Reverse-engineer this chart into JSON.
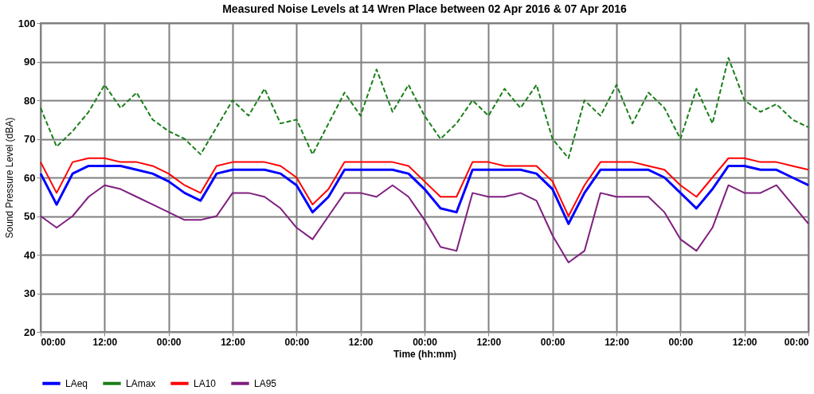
{
  "chart_data": {
    "type": "line",
    "title": "Measured Noise Levels at 14 Wren Place between 02 Apr 2016 & 07 Apr 2016",
    "xlabel": "Time (hh:mm)",
    "ylabel": "Sound Pressure Level (dBA)",
    "x": [
      "2016-04-02T00:00",
      "2016-04-02T03:00",
      "2016-04-02T06:00",
      "2016-04-02T09:00",
      "2016-04-02T12:00",
      "2016-04-02T15:00",
      "2016-04-02T18:00",
      "2016-04-02T21:00",
      "2016-04-03T00:00",
      "2016-04-03T03:00",
      "2016-04-03T06:00",
      "2016-04-03T09:00",
      "2016-04-03T12:00",
      "2016-04-03T15:00",
      "2016-04-03T18:00",
      "2016-04-03T21:00",
      "2016-04-04T00:00",
      "2016-04-04T03:00",
      "2016-04-04T06:00",
      "2016-04-04T09:00",
      "2016-04-04T12:00",
      "2016-04-04T15:00",
      "2016-04-04T18:00",
      "2016-04-04T21:00",
      "2016-04-05T00:00",
      "2016-04-05T03:00",
      "2016-04-05T06:00",
      "2016-04-05T09:00",
      "2016-04-05T12:00",
      "2016-04-05T15:00",
      "2016-04-05T18:00",
      "2016-04-05T21:00",
      "2016-04-06T00:00",
      "2016-04-06T03:00",
      "2016-04-06T06:00",
      "2016-04-06T09:00",
      "2016-04-06T12:00",
      "2016-04-06T15:00",
      "2016-04-06T18:00",
      "2016-04-06T21:00",
      "2016-04-07T00:00",
      "2016-04-07T03:00",
      "2016-04-07T06:00",
      "2016-04-07T09:00",
      "2016-04-07T12:00",
      "2016-04-07T15:00",
      "2016-04-07T18:00",
      "2016-04-07T21:00",
      "2016-04-08T00:00"
    ],
    "series": [
      {
        "name": "LAeq",
        "color": "#0000ff",
        "line_style": "solid",
        "values": [
          61,
          53,
          61,
          63,
          63,
          63,
          62,
          61,
          59,
          56,
          54,
          61,
          62,
          62,
          62,
          61,
          58,
          51,
          55,
          62,
          62,
          62,
          62,
          61,
          57,
          52,
          51,
          62,
          62,
          62,
          62,
          61,
          57,
          48,
          56,
          62,
          62,
          62,
          62,
          60,
          56,
          52,
          57,
          63,
          63,
          62,
          62,
          60,
          58
        ]
      },
      {
        "name": "LAmax",
        "color": "#1a7f1a",
        "line_style": "dashed",
        "values": [
          78,
          68,
          72,
          77,
          84,
          78,
          82,
          75,
          72,
          70,
          66,
          73,
          80,
          76,
          83,
          74,
          75,
          66,
          74,
          82,
          76,
          88,
          77,
          84,
          76,
          70,
          74,
          80,
          76,
          83,
          78,
          84,
          70,
          65,
          80,
          76,
          84,
          74,
          82,
          78,
          70,
          83,
          74,
          91,
          80,
          77,
          79,
          75,
          73
        ]
      },
      {
        "name": "LA10",
        "color": "#ff0000",
        "line_style": "solid",
        "values": [
          64,
          56,
          64,
          65,
          65,
          64,
          64,
          63,
          61,
          58,
          56,
          63,
          64,
          64,
          64,
          63,
          60,
          53,
          57,
          64,
          64,
          64,
          64,
          63,
          59,
          55,
          55,
          64,
          64,
          63,
          63,
          63,
          59,
          50,
          58,
          64,
          64,
          64,
          63,
          62,
          58,
          55,
          60,
          65,
          65,
          64,
          64,
          63,
          62
        ]
      },
      {
        "name": "LA95",
        "color": "#7f1f7f",
        "line_style": "solid",
        "values": [
          50,
          47,
          50,
          55,
          58,
          57,
          55,
          53,
          51,
          49,
          49,
          50,
          56,
          56,
          55,
          52,
          47,
          44,
          50,
          56,
          56,
          55,
          58,
          55,
          49,
          42,
          41,
          56,
          55,
          55,
          56,
          54,
          45,
          38,
          41,
          56,
          55,
          55,
          55,
          51,
          44,
          41,
          47,
          58,
          56,
          56,
          58,
          53,
          48
        ]
      }
    ],
    "xlim": [
      "2016-04-02T00:00",
      "2016-04-08T00:00"
    ],
    "xticks": [
      {
        "value": "2016-04-02T00:00",
        "label": "00:00"
      },
      {
        "value": "2016-04-02T12:00",
        "label": "12:00"
      },
      {
        "value": "2016-04-03T00:00",
        "label": "00:00"
      },
      {
        "value": "2016-04-03T12:00",
        "label": "12:00"
      },
      {
        "value": "2016-04-04T00:00",
        "label": "00:00"
      },
      {
        "value": "2016-04-04T12:00",
        "label": "12:00"
      },
      {
        "value": "2016-04-05T00:00",
        "label": "00:00"
      },
      {
        "value": "2016-04-05T12:00",
        "label": "12:00"
      },
      {
        "value": "2016-04-06T00:00",
        "label": "00:00"
      },
      {
        "value": "2016-04-06T12:00",
        "label": "12:00"
      },
      {
        "value": "2016-04-07T00:00",
        "label": "00:00"
      },
      {
        "value": "2016-04-07T12:00",
        "label": "12:00"
      },
      {
        "value": "2016-04-08T00:00",
        "label": "00:00"
      }
    ],
    "ylim": [
      20,
      100
    ],
    "yticks": [
      20,
      30,
      40,
      50,
      60,
      70,
      80,
      90,
      100
    ],
    "grid": true,
    "legend": "bottom",
    "marker": "none"
  }
}
